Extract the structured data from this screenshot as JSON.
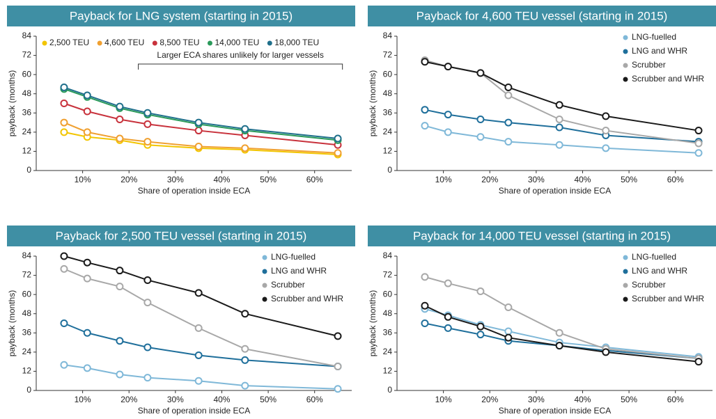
{
  "chart_data": [
    {
      "type": "line",
      "title": "Payback for LNG system (starting in 2015)",
      "xlabel": "Share of operation inside ECA",
      "ylabel": "payback (months)",
      "annotation": "Larger ECA shares unlikely for larger vessels",
      "x": [
        6,
        11,
        18,
        24,
        35,
        45,
        65
      ],
      "xlim": [
        0,
        68
      ],
      "xticks": [
        {
          "value": 10,
          "label": "10%"
        },
        {
          "value": 20,
          "label": "20%"
        },
        {
          "value": 30,
          "label": "30%"
        },
        {
          "value": 40,
          "label": "40%"
        },
        {
          "value": 50,
          "label": "50%"
        },
        {
          "value": 60,
          "label": "60%"
        }
      ],
      "ylim": [
        0,
        84
      ],
      "yticks": [
        0,
        12,
        24,
        36,
        48,
        60,
        72,
        84
      ],
      "legend": "top",
      "series": [
        {
          "name": "2,500 TEU",
          "color": "#f2c500",
          "values": [
            24,
            21,
            19,
            16,
            14,
            13,
            10
          ]
        },
        {
          "name": "4,600 TEU",
          "color": "#f0a030",
          "values": [
            30,
            24,
            20,
            18,
            15,
            14,
            11
          ]
        },
        {
          "name": "8,500 TEU",
          "color": "#c8323c",
          "values": [
            42,
            37,
            32,
            29,
            25,
            22,
            16
          ]
        },
        {
          "name": "14,000 TEU",
          "color": "#2a9a5a",
          "values": [
            51,
            46,
            39,
            35,
            29,
            25,
            19
          ]
        },
        {
          "name": "18,000 TEU",
          "color": "#1f6f8b",
          "values": [
            52,
            47,
            40,
            36,
            30,
            26,
            20
          ]
        }
      ]
    },
    {
      "type": "line",
      "title": "Payback for 4,600 TEU vessel (starting in 2015)",
      "xlabel": "Share of operation inside ECA",
      "ylabel": "payback (months)",
      "x": [
        6,
        11,
        18,
        24,
        35,
        45,
        65
      ],
      "xlim": [
        0,
        68
      ],
      "xticks": [
        {
          "value": 10,
          "label": "10%"
        },
        {
          "value": 20,
          "label": "20%"
        },
        {
          "value": 30,
          "label": "30%"
        },
        {
          "value": 40,
          "label": "40%"
        },
        {
          "value": 50,
          "label": "50%"
        },
        {
          "value": 60,
          "label": "60%"
        }
      ],
      "ylim": [
        0,
        84
      ],
      "yticks": [
        0,
        12,
        24,
        36,
        48,
        60,
        72,
        84
      ],
      "legend": "upper right",
      "series": [
        {
          "name": "LNG-fuelled",
          "color": "#7fb8d8",
          "values": [
            28,
            24,
            21,
            18,
            16,
            14,
            11
          ]
        },
        {
          "name": "LNG and WHR",
          "color": "#1f6f9b",
          "values": [
            38,
            35,
            32,
            30,
            27,
            22,
            18
          ]
        },
        {
          "name": "Scrubber",
          "color": "#a8a8a8",
          "values": [
            69,
            65,
            61,
            47,
            32,
            25,
            17
          ]
        },
        {
          "name": "Scrubber and WHR",
          "color": "#1a1a1a",
          "values": [
            68,
            65,
            61,
            52,
            41,
            34,
            25
          ]
        }
      ]
    },
    {
      "type": "line",
      "title": "Payback for 2,500 TEU vessel (starting in 2015)",
      "xlabel": "Share of operation inside ECA",
      "ylabel": "payback (months)",
      "x": [
        6,
        11,
        18,
        24,
        35,
        45,
        65
      ],
      "xlim": [
        0,
        68
      ],
      "xticks": [
        {
          "value": 10,
          "label": "10%"
        },
        {
          "value": 20,
          "label": "20%"
        },
        {
          "value": 30,
          "label": "30%"
        },
        {
          "value": 40,
          "label": "40%"
        },
        {
          "value": 50,
          "label": "50%"
        },
        {
          "value": 60,
          "label": "60%"
        }
      ],
      "ylim": [
        0,
        84
      ],
      "yticks": [
        0,
        12,
        24,
        36,
        48,
        60,
        72,
        84
      ],
      "legend": "upper right",
      "series": [
        {
          "name": "LNG-fuelled",
          "color": "#7fb8d8",
          "values": [
            16,
            14,
            10,
            8,
            6,
            3,
            1
          ]
        },
        {
          "name": "LNG and WHR",
          "color": "#1f6f9b",
          "values": [
            42,
            36,
            31,
            27,
            22,
            19,
            15
          ]
        },
        {
          "name": "Scrubber",
          "color": "#a8a8a8",
          "values": [
            76,
            70,
            65,
            55,
            39,
            26,
            15
          ]
        },
        {
          "name": "Scrubber and WHR",
          "color": "#1a1a1a",
          "values": [
            84,
            80,
            75,
            69,
            61,
            48,
            34
          ]
        }
      ]
    },
    {
      "type": "line",
      "title": "Payback for 14,000 TEU vessel (starting in 2015)",
      "xlabel": "Share of operation inside ECA",
      "ylabel": "payback (months)",
      "x": [
        6,
        11,
        18,
        24,
        35,
        45,
        65
      ],
      "xlim": [
        0,
        68
      ],
      "xticks": [
        {
          "value": 10,
          "label": "10%"
        },
        {
          "value": 20,
          "label": "20%"
        },
        {
          "value": 30,
          "label": "30%"
        },
        {
          "value": 40,
          "label": "40%"
        },
        {
          "value": 50,
          "label": "50%"
        },
        {
          "value": 60,
          "label": "60%"
        }
      ],
      "ylim": [
        0,
        84
      ],
      "yticks": [
        0,
        12,
        24,
        36,
        48,
        60,
        72,
        84
      ],
      "legend": "upper right",
      "series": [
        {
          "name": "LNG-fuelled",
          "color": "#7fb8d8",
          "values": [
            51,
            47,
            41,
            37,
            30,
            27,
            21
          ]
        },
        {
          "name": "LNG and WHR",
          "color": "#1f6f9b",
          "values": [
            42,
            39,
            35,
            31,
            28,
            25,
            20
          ]
        },
        {
          "name": "Scrubber",
          "color": "#a8a8a8",
          "values": [
            71,
            67,
            62,
            52,
            36,
            26,
            20
          ]
        },
        {
          "name": "Scrubber and WHR",
          "color": "#1a1a1a",
          "values": [
            53,
            46,
            40,
            33,
            28,
            24,
            18
          ]
        }
      ]
    }
  ]
}
